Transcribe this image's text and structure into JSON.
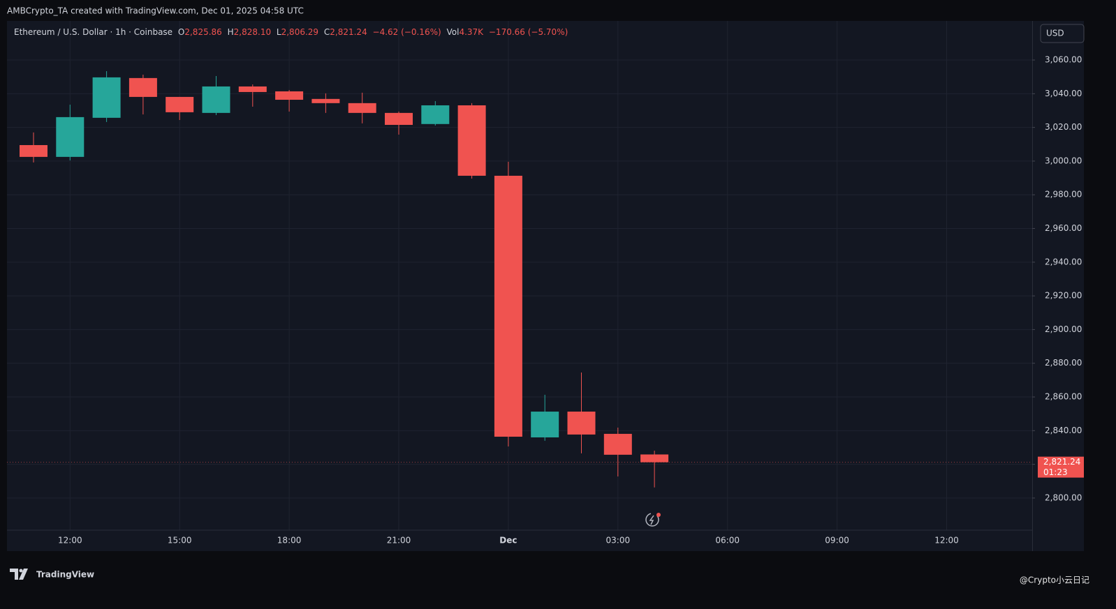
{
  "header": {
    "credit": "AMBCrypto_TA created with TradingView.com, Dec 01, 2025 04:58 UTC"
  },
  "legend": {
    "symbol": "Ethereum / U.S. Dollar · 1h · Coinbase",
    "o_key": "O",
    "o": "2,825.86",
    "h_key": "H",
    "h": "2,828.10",
    "l_key": "L",
    "l": "2,806.29",
    "c_key": "C",
    "c": "2,821.24",
    "change": "−4.62 (−0.16%)",
    "vol_key": "Vol",
    "vol": "4.37K",
    "vol_change": "−170.66 (−5.70%)"
  },
  "currency": "USD",
  "last_price": {
    "label": "2,821.24",
    "countdown": "01:23"
  },
  "footer": {
    "brand": "TradingView",
    "watermark": "@Crypto小云日记"
  },
  "chart_data": {
    "type": "candlestick",
    "categories": [
      null,
      "12:00",
      null,
      null,
      "15:00",
      null,
      null,
      "18:00",
      null,
      null,
      "21:00",
      null,
      null,
      "Dec",
      null,
      null,
      "03:00",
      null,
      null,
      "06:00",
      null,
      null,
      "09:00",
      null,
      null,
      "12:00"
    ],
    "open": [
      3009.5,
      3002.5,
      3025.7,
      3049.3,
      3038.1,
      3028.6,
      3044.3,
      3041.4,
      3036.9,
      3034.4,
      3028.6,
      3022.0,
      3033.1,
      2991.3,
      2836.0,
      2851.3,
      2838.1,
      2825.86,
      null,
      null,
      null,
      null,
      null,
      null,
      null,
      null
    ],
    "high": [
      3017.0,
      3033.5,
      3053.4,
      3051.3,
      3038.1,
      3050.5,
      3045.5,
      3042.2,
      3040.2,
      3040.6,
      3029.4,
      3035.6,
      3034.4,
      2999.6,
      2861.3,
      2874.5,
      2841.8,
      2828.1,
      null,
      null,
      null,
      null,
      null,
      null,
      null,
      null
    ],
    "low": [
      2999.2,
      3000.4,
      3023.2,
      3027.7,
      3024.4,
      3027.3,
      3032.3,
      3029.4,
      3028.6,
      3022.4,
      3015.7,
      3021.1,
      2989.6,
      2830.6,
      2834.0,
      2826.5,
      2812.8,
      2806.29,
      null,
      null,
      null,
      null,
      null,
      null,
      null,
      null
    ],
    "close": [
      3002.5,
      3026.1,
      3049.7,
      3038.1,
      3029.0,
      3044.3,
      3041.0,
      3036.4,
      3034.4,
      3028.6,
      3021.5,
      3033.1,
      2991.3,
      2836.4,
      2851.3,
      2837.7,
      2825.7,
      2821.24,
      null,
      null,
      null,
      null,
      null,
      null,
      null,
      null
    ],
    "up_color": "#26a69a",
    "down_color": "#f05350",
    "ylim": [
      2768.5,
      3083.2
    ],
    "yticks": [
      {
        "value": 2800,
        "label": "2,800.00"
      },
      {
        "value": 2820,
        "label": "2,820.00"
      },
      {
        "value": 2840,
        "label": "2,840.00"
      },
      {
        "value": 2860,
        "label": "2,860.00"
      },
      {
        "value": 2880,
        "label": "2,880.00"
      },
      {
        "value": 2900,
        "label": "2,900.00"
      },
      {
        "value": 2920,
        "label": "2,920.00"
      },
      {
        "value": 2940,
        "label": "2,940.00"
      },
      {
        "value": 2960,
        "label": "2,960.00"
      },
      {
        "value": 2980,
        "label": "2,980.00"
      },
      {
        "value": 3000,
        "label": "3,000.00"
      },
      {
        "value": 3020,
        "label": "3,020.00"
      },
      {
        "value": 3040,
        "label": "3,040.00"
      },
      {
        "value": 3060,
        "label": "3,060.00"
      }
    ],
    "grid": true
  }
}
